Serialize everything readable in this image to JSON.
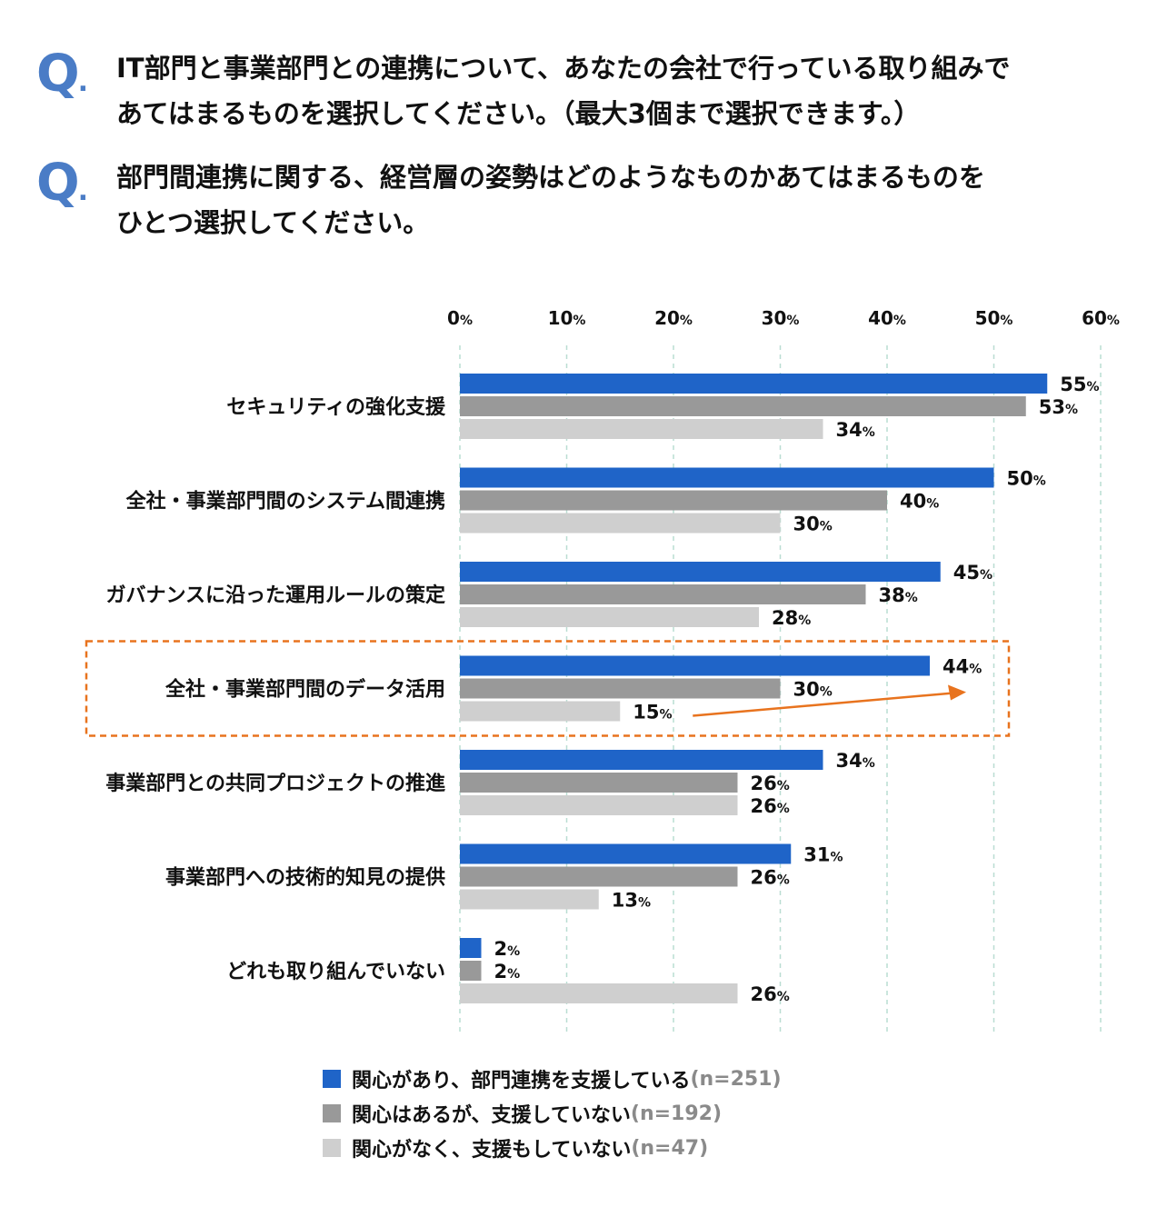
{
  "questions": [
    {
      "mark": "Q",
      "text_line1": "IT部門と事業部門との連携について、あなたの会社で行っている取り組みで",
      "text_line2": "あてはまるものを選択してください。（最大3個まで選択できます。）"
    },
    {
      "mark": "Q",
      "text_line1": "部門間連携に関する、経営層の姿勢はどのようなものかあてはまるものを",
      "text_line2": "ひとつ選択してください。"
    }
  ],
  "colors": {
    "series1": "#1f64c8",
    "series2": "#999999",
    "series3": "#cfcfcf",
    "highlight": "#e8731e",
    "grid": "#b9ddd2"
  },
  "chart_data": {
    "type": "bar",
    "orientation": "horizontal",
    "xlim": [
      0,
      60
    ],
    "ticks": [
      0,
      10,
      20,
      30,
      40,
      50,
      60
    ],
    "tick_unit": "%",
    "grid": true,
    "categories": [
      "セキュリティの強化支援",
      "全社・事業部門間のシステム間連携",
      "ガバナンスに沿った運用ルールの策定",
      "全社・事業部門間のデータ活用",
      "事業部門との共同プロジェクトの推進",
      "事業部門への技術的知見の提供",
      "どれも取り組んでいない"
    ],
    "series": [
      {
        "name": "関心があり、部門連携を支援している",
        "n": "(n=251)",
        "values": [
          55,
          50,
          45,
          44,
          34,
          31,
          2
        ]
      },
      {
        "name": "関心はあるが、支援していない",
        "n": "(n=192)",
        "values": [
          53,
          40,
          38,
          30,
          26,
          26,
          2
        ]
      },
      {
        "name": "関心がなく、支援もしていない",
        "n": "(n=47)",
        "values": [
          34,
          30,
          28,
          15,
          26,
          13,
          26
        ]
      }
    ],
    "highlighted_category_index": 3,
    "annotation": "arrow from 15% to 44% in highlighted category",
    "legend_position": "bottom"
  }
}
